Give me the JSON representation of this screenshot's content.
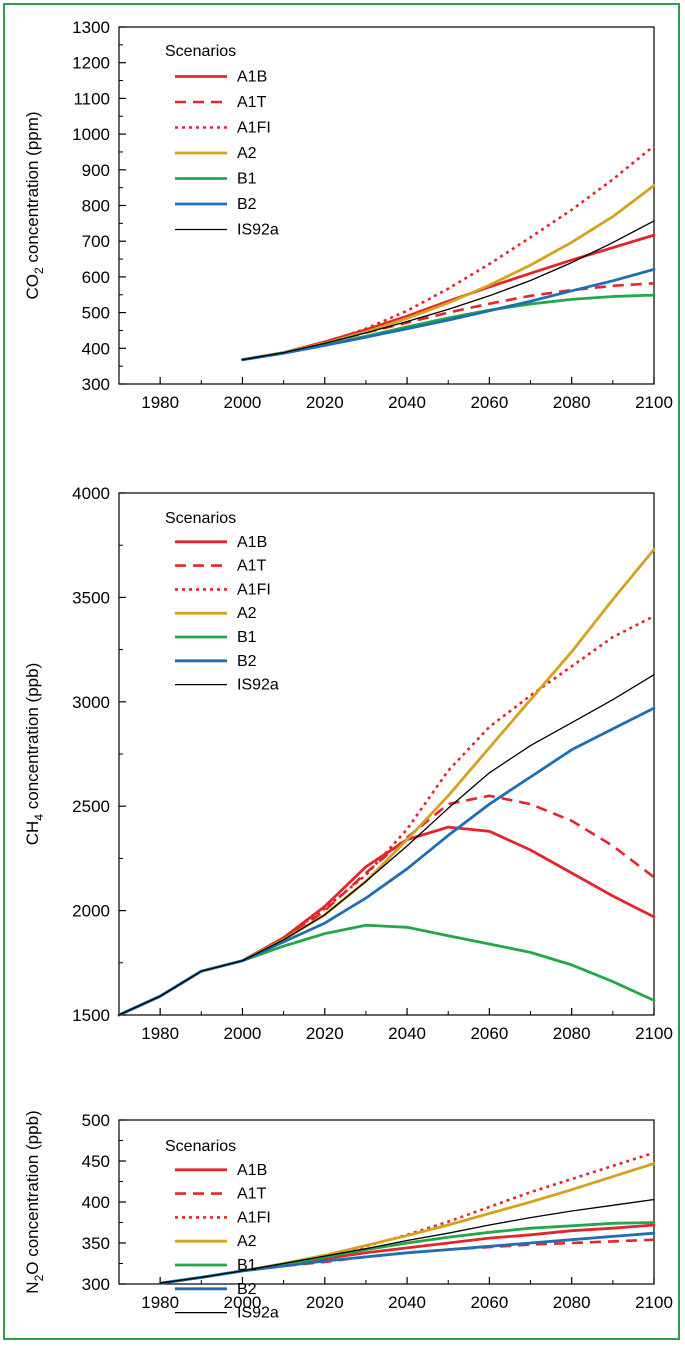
{
  "colors": {
    "frame": "#2f9e4a",
    "A1B": "#e3262b",
    "A1T": "#e3262b",
    "A1FI": "#e3262b",
    "A2": "#d4a21e",
    "B1": "#22a84a",
    "B2": "#1f6eb3",
    "IS92a": "#000000"
  },
  "chart_data": [
    {
      "type": "line",
      "ylabel_main": "CO",
      "ylabel_sub": "2",
      "ylabel_rest": " concentration (ppm)",
      "xlim": [
        1970,
        2100
      ],
      "ylim": [
        300,
        1300
      ],
      "xticks": [
        1980,
        2000,
        2020,
        2040,
        2060,
        2080,
        2100
      ],
      "yticks": [
        300,
        400,
        500,
        600,
        700,
        800,
        900,
        1000,
        1100,
        1200,
        1300
      ],
      "legend_title": "Scenarios",
      "legend_position": "top-left",
      "series": [
        {
          "name": "A1B",
          "style": "solid",
          "x": [
            2000,
            2010,
            2020,
            2030,
            2040,
            2050,
            2060,
            2070,
            2080,
            2090,
            2100
          ],
          "y": [
            368,
            388,
            418,
            452,
            490,
            532,
            572,
            610,
            647,
            682,
            717
          ]
        },
        {
          "name": "A1T",
          "style": "dashed",
          "x": [
            2000,
            2010,
            2020,
            2030,
            2040,
            2050,
            2060,
            2070,
            2080,
            2090,
            2100
          ],
          "y": [
            368,
            388,
            414,
            444,
            472,
            500,
            525,
            547,
            563,
            575,
            582
          ]
        },
        {
          "name": "A1FI",
          "style": "dotted",
          "x": [
            2000,
            2010,
            2020,
            2030,
            2040,
            2050,
            2060,
            2070,
            2080,
            2090,
            2100
          ],
          "y": [
            368,
            388,
            416,
            455,
            505,
            567,
            636,
            711,
            788,
            873,
            967
          ]
        },
        {
          "name": "A2",
          "style": "solid",
          "x": [
            2000,
            2010,
            2020,
            2030,
            2040,
            2050,
            2060,
            2070,
            2080,
            2090,
            2100
          ],
          "y": [
            368,
            388,
            414,
            446,
            484,
            527,
            577,
            633,
            697,
            769,
            856
          ]
        },
        {
          "name": "B1",
          "style": "solid",
          "x": [
            2000,
            2010,
            2020,
            2030,
            2040,
            2050,
            2060,
            2070,
            2080,
            2090,
            2100
          ],
          "y": [
            368,
            387,
            410,
            434,
            460,
            485,
            507,
            524,
            537,
            545,
            549
          ]
        },
        {
          "name": "B2",
          "style": "solid",
          "x": [
            2000,
            2010,
            2020,
            2030,
            2040,
            2050,
            2060,
            2070,
            2080,
            2090,
            2100
          ],
          "y": [
            368,
            386,
            408,
            431,
            455,
            479,
            505,
            532,
            561,
            589,
            621
          ]
        },
        {
          "name": "IS92a",
          "style": "thin",
          "x": [
            2000,
            2010,
            2020,
            2030,
            2040,
            2050,
            2060,
            2070,
            2080,
            2090,
            2100
          ],
          "y": [
            368,
            388,
            414,
            443,
            475,
            509,
            547,
            590,
            640,
            696,
            757
          ]
        }
      ]
    },
    {
      "type": "line",
      "ylabel_main": "CH",
      "ylabel_sub": "4",
      "ylabel_rest": " concentration (ppb)",
      "xlim": [
        1970,
        2100
      ],
      "ylim": [
        1500,
        4000
      ],
      "xticks": [
        1980,
        2000,
        2020,
        2040,
        2060,
        2080,
        2100
      ],
      "yticks": [
        1500,
        2000,
        2500,
        3000,
        3500,
        4000
      ],
      "legend_title": "Scenarios",
      "legend_position": "top-left",
      "series": [
        {
          "name": "A1B",
          "style": "solid",
          "x": [
            1970,
            1980,
            1990,
            2000,
            2010,
            2020,
            2030,
            2040,
            2050,
            2060,
            2070,
            2080,
            2090,
            2100
          ],
          "y": [
            1500,
            1590,
            1710,
            1760,
            1870,
            2020,
            2210,
            2340,
            2400,
            2380,
            2290,
            2180,
            2070,
            1970
          ]
        },
        {
          "name": "A1T",
          "style": "dashed",
          "x": [
            1970,
            1980,
            1990,
            2000,
            2010,
            2020,
            2030,
            2040,
            2050,
            2060,
            2070,
            2080,
            2090,
            2100
          ],
          "y": [
            1500,
            1590,
            1710,
            1760,
            1860,
            2000,
            2180,
            2350,
            2510,
            2550,
            2510,
            2430,
            2310,
            2160
          ]
        },
        {
          "name": "A1FI",
          "style": "dotted",
          "x": [
            1970,
            1980,
            1990,
            2000,
            2010,
            2020,
            2030,
            2040,
            2050,
            2060,
            2070,
            2080,
            2090,
            2100
          ],
          "y": [
            1500,
            1590,
            1710,
            1760,
            1870,
            2010,
            2170,
            2390,
            2670,
            2880,
            3030,
            3170,
            3310,
            3410
          ]
        },
        {
          "name": "A2",
          "style": "solid",
          "x": [
            1970,
            1980,
            1990,
            2000,
            2010,
            2020,
            2030,
            2040,
            2050,
            2060,
            2070,
            2080,
            2090,
            2100
          ],
          "y": [
            1500,
            1590,
            1710,
            1760,
            1860,
            1980,
            2140,
            2340,
            2550,
            2780,
            3010,
            3240,
            3490,
            3730
          ]
        },
        {
          "name": "B1",
          "style": "solid",
          "x": [
            1970,
            1980,
            1990,
            2000,
            2010,
            2020,
            2030,
            2040,
            2050,
            2060,
            2070,
            2080,
            2090,
            2100
          ],
          "y": [
            1500,
            1590,
            1710,
            1760,
            1830,
            1890,
            1930,
            1920,
            1880,
            1840,
            1800,
            1740,
            1660,
            1570
          ]
        },
        {
          "name": "B2",
          "style": "solid",
          "x": [
            1970,
            1980,
            1990,
            2000,
            2010,
            2020,
            2030,
            2040,
            2050,
            2060,
            2070,
            2080,
            2090,
            2100
          ],
          "y": [
            1500,
            1590,
            1710,
            1760,
            1850,
            1940,
            2060,
            2200,
            2360,
            2510,
            2640,
            2770,
            2870,
            2970
          ]
        },
        {
          "name": "IS92a",
          "style": "thin",
          "x": [
            1970,
            1980,
            1990,
            2000,
            2010,
            2020,
            2030,
            2040,
            2050,
            2060,
            2070,
            2080,
            2090,
            2100
          ],
          "y": [
            1500,
            1590,
            1710,
            1760,
            1860,
            1980,
            2140,
            2310,
            2490,
            2660,
            2790,
            2900,
            3010,
            3130
          ]
        }
      ]
    },
    {
      "type": "line",
      "ylabel_main": "N",
      "ylabel_sub": "2",
      "ylabel_rest": "O concentration (ppb)",
      "xlim": [
        1970,
        2100
      ],
      "ylim": [
        300,
        500
      ],
      "xticks": [
        1980,
        2000,
        2020,
        2040,
        2060,
        2080,
        2100
      ],
      "yticks": [
        300,
        350,
        400,
        450,
        500
      ],
      "legend_title": "Scenarios",
      "legend_position": "top-left",
      "series": [
        {
          "name": "A1B",
          "style": "solid",
          "x": [
            1980,
            1990,
            2000,
            2010,
            2020,
            2030,
            2040,
            2050,
            2060,
            2070,
            2080,
            2090,
            2100
          ],
          "y": [
            301,
            308,
            316,
            323,
            331,
            338,
            344,
            350,
            356,
            360,
            365,
            368,
            372
          ]
        },
        {
          "name": "A1T",
          "style": "dashed",
          "x": [
            1980,
            1990,
            2000,
            2010,
            2020,
            2030,
            2040,
            2050,
            2060,
            2070,
            2080,
            2090,
            2100
          ],
          "y": [
            301,
            308,
            316,
            322,
            327,
            333,
            338,
            342,
            345,
            348,
            350,
            352,
            354
          ]
        },
        {
          "name": "A1FI",
          "style": "dotted",
          "x": [
            1980,
            1990,
            2000,
            2010,
            2020,
            2030,
            2040,
            2050,
            2060,
            2070,
            2080,
            2090,
            2100
          ],
          "y": [
            301,
            308,
            316,
            324,
            334,
            346,
            360,
            376,
            394,
            412,
            428,
            444,
            460
          ]
        },
        {
          "name": "A2",
          "style": "solid",
          "x": [
            1980,
            1990,
            2000,
            2010,
            2020,
            2030,
            2040,
            2050,
            2060,
            2070,
            2080,
            2090,
            2100
          ],
          "y": [
            301,
            308,
            316,
            325,
            335,
            347,
            359,
            372,
            386,
            400,
            415,
            431,
            447
          ]
        },
        {
          "name": "B1",
          "style": "solid",
          "x": [
            1980,
            1990,
            2000,
            2010,
            2020,
            2030,
            2040,
            2050,
            2060,
            2070,
            2080,
            2090,
            2100
          ],
          "y": [
            301,
            308,
            316,
            324,
            333,
            342,
            350,
            357,
            363,
            368,
            371,
            374,
            375
          ]
        },
        {
          "name": "B2",
          "style": "solid",
          "x": [
            1980,
            1990,
            2000,
            2010,
            2020,
            2030,
            2040,
            2050,
            2060,
            2070,
            2080,
            2090,
            2100
          ],
          "y": [
            301,
            308,
            316,
            322,
            328,
            333,
            338,
            342,
            346,
            350,
            354,
            358,
            362
          ]
        },
        {
          "name": "IS92a",
          "style": "thin",
          "x": [
            1980,
            1990,
            2000,
            2010,
            2020,
            2030,
            2040,
            2050,
            2060,
            2070,
            2080,
            2090,
            2100
          ],
          "y": [
            301,
            308,
            316,
            325,
            334,
            343,
            353,
            362,
            372,
            381,
            389,
            396,
            403
          ]
        }
      ]
    }
  ]
}
